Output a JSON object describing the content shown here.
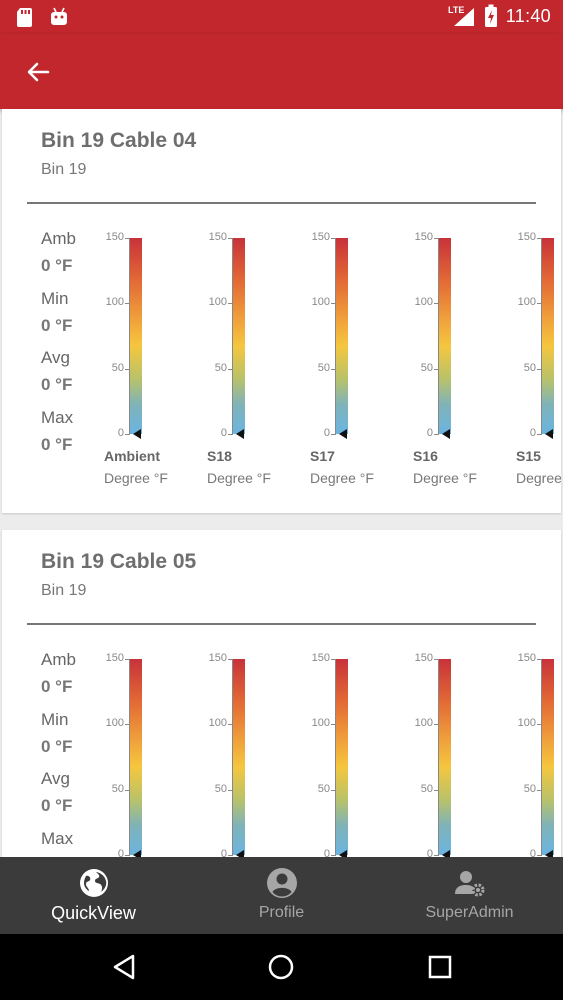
{
  "status_bar": {
    "network": "LTE",
    "time": "11:40"
  },
  "app_bar": {
    "back_icon": "arrow-back-icon"
  },
  "cards": [
    {
      "title": "Bin 19 Cable 04",
      "subtitle": "Bin 19",
      "stats": [
        {
          "label": "Amb",
          "value": "0 °F"
        },
        {
          "label": "Min",
          "value": "0 °F"
        },
        {
          "label": "Avg",
          "value": "0 °F"
        },
        {
          "label": "Max",
          "value": "0 °F"
        }
      ],
      "gauges": [
        {
          "name": "Ambient",
          "unit": "Degree °F",
          "value": 0
        },
        {
          "name": "S18",
          "unit": "Degree °F",
          "value": 0
        },
        {
          "name": "S17",
          "unit": "Degree °F",
          "value": 0
        },
        {
          "name": "S16",
          "unit": "Degree °F",
          "value": 0
        },
        {
          "name": "S15",
          "unit": "Degree °F",
          "value": 0
        }
      ]
    },
    {
      "title": "Bin 19 Cable 05",
      "subtitle": "Bin 19",
      "stats": [
        {
          "label": "Amb",
          "value": "0 °F"
        },
        {
          "label": "Min",
          "value": "0 °F"
        },
        {
          "label": "Avg",
          "value": "0 °F"
        },
        {
          "label": "Max",
          "value": ""
        }
      ],
      "gauges": [
        {
          "name": "",
          "unit": "",
          "value": 0
        },
        {
          "name": "",
          "unit": "",
          "value": 0
        },
        {
          "name": "",
          "unit": "",
          "value": 0
        },
        {
          "name": "",
          "unit": "",
          "value": 0
        },
        {
          "name": "",
          "unit": "",
          "value": 0
        }
      ]
    }
  ],
  "gauge_scale": {
    "ticks": [
      "150",
      "100",
      "50",
      "0"
    ],
    "min": 0,
    "max": 150
  },
  "bottom_nav": [
    {
      "label": "QuickView",
      "icon": "globe-icon",
      "active": true
    },
    {
      "label": "Profile",
      "icon": "account-circle-icon",
      "active": false
    },
    {
      "label": "SuperAdmin",
      "icon": "admin-settings-icon",
      "active": false
    }
  ],
  "system_nav": [
    "back-triangle-icon",
    "home-circle-icon",
    "recents-square-icon"
  ],
  "colors": {
    "primary": "#c1272d",
    "nav_bg": "#3b3b3b"
  }
}
